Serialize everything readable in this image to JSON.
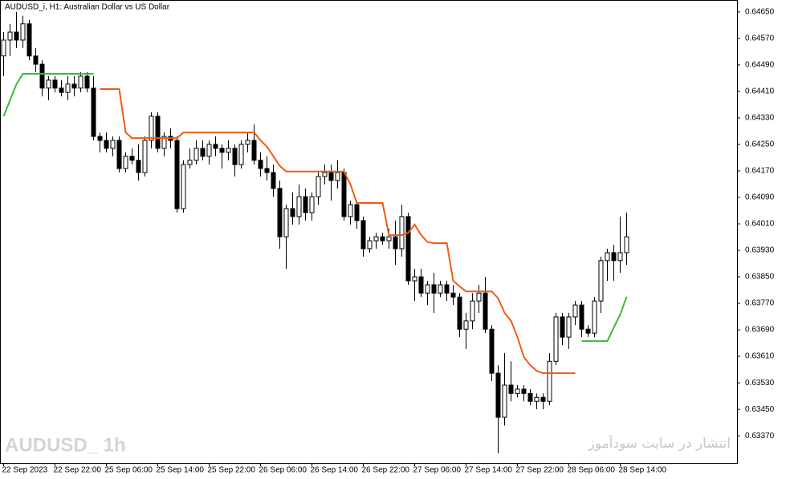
{
  "chart_data": {
    "type": "candlestick",
    "title": "AUDUSD_i, H1:  Australian Dollar vs US Dollar",
    "watermark": "AUDUSD_ 1h",
    "annotation": "انتشار در سایت سودآموز",
    "categories": [
      "22 Sep 2023",
      null,
      null,
      null,
      null,
      null,
      null,
      null,
      "22 Sep 22:00",
      null,
      null,
      null,
      null,
      null,
      null,
      null,
      "25 Sep 06:00",
      null,
      null,
      null,
      null,
      null,
      null,
      null,
      "25 Sep 14:00",
      null,
      null,
      null,
      null,
      null,
      null,
      null,
      "25 Sep 22:00",
      null,
      null,
      null,
      null,
      null,
      null,
      null,
      "26 Sep 06:00",
      null,
      null,
      null,
      null,
      null,
      null,
      null,
      "26 Sep 14:00",
      null,
      null,
      null,
      null,
      null,
      null,
      null,
      "26 Sep 22:00",
      null,
      null,
      null,
      null,
      null,
      null,
      null,
      "27 Sep 06:00",
      null,
      null,
      null,
      null,
      null,
      null,
      null,
      "27 Sep 14:00",
      null,
      null,
      null,
      null,
      null,
      null,
      null,
      "27 Sep 22:00",
      null,
      null,
      null,
      null,
      null,
      null,
      null,
      "28 Sep 06:00",
      null,
      null,
      null,
      null,
      null,
      null,
      null,
      "28 Sep 14:00",
      null
    ],
    "open": [
      0.64517,
      0.64565,
      0.64589,
      0.64565,
      0.64614,
      0.64517,
      0.64492,
      0.6442,
      0.64444,
      0.6442,
      0.64407,
      0.64432,
      0.6442,
      0.64456,
      0.6442,
      0.64274,
      0.64262,
      0.64238,
      0.64262,
      0.64177,
      0.64214,
      0.64202,
      0.64165,
      0.64262,
      0.64335,
      0.64238,
      0.64274,
      0.64262,
      0.64056,
      0.64189,
      0.64202,
      0.64238,
      0.64214,
      0.6425,
      0.64238,
      0.64226,
      0.64238,
      0.64189,
      0.6425,
      0.64262,
      0.64202,
      0.64177,
      0.64165,
      0.64117,
      0.63971,
      0.64056,
      0.64032,
      0.64092,
      0.64044,
      0.64092,
      0.64153,
      0.64165,
      0.64141,
      0.64165,
      0.64032,
      0.64068,
      0.6402,
      0.63935,
      0.63959,
      0.63971,
      0.63959,
      0.63971,
      0.63935,
      0.64032,
      0.63838,
      0.6385,
      0.63801,
      0.63826,
      0.63801,
      0.63826,
      0.63801,
      0.63789,
      0.63692,
      0.63717,
      0.63777,
      0.63801,
      0.63692,
      0.63559,
      0.63426,
      0.63523,
      0.63498,
      0.63511,
      0.63498,
      0.63474,
      0.63486,
      0.63474,
      0.63595,
      0.63729,
      0.63668,
      0.63729,
      0.63765,
      0.63692,
      0.6368,
      0.63777,
      0.63899,
      0.63923,
      0.63899,
      0.63923
    ],
    "high": [
      0.64589,
      0.64614,
      0.6465,
      0.64638,
      0.64626,
      0.64541,
      0.64504,
      0.64456,
      0.64456,
      0.64444,
      0.64456,
      0.64456,
      0.64468,
      0.64468,
      0.64456,
      0.64286,
      0.64286,
      0.64274,
      0.64274,
      0.64226,
      0.64238,
      0.6425,
      0.64274,
      0.64347,
      0.64347,
      0.64286,
      0.64298,
      0.64274,
      0.64202,
      0.64238,
      0.64262,
      0.64262,
      0.64262,
      0.64274,
      0.6425,
      0.64262,
      0.6425,
      0.64262,
      0.64286,
      0.6431,
      0.64226,
      0.64214,
      0.64189,
      0.64141,
      0.64068,
      0.64105,
      0.64129,
      0.64117,
      0.64105,
      0.64165,
      0.64189,
      0.64189,
      0.64202,
      0.64177,
      0.6408,
      0.6408,
      0.64032,
      0.63971,
      0.63983,
      0.63983,
      0.63995,
      0.6402,
      0.64068,
      0.64044,
      0.63874,
      0.63874,
      0.63838,
      0.63862,
      0.63838,
      0.63838,
      0.63826,
      0.63801,
      0.63741,
      0.63801,
      0.63826,
      0.6385,
      0.63704,
      0.63583,
      0.6362,
      0.63595,
      0.63523,
      0.63523,
      0.63511,
      0.63498,
      0.63498,
      0.6362,
      0.63741,
      0.63741,
      0.63741,
      0.63777,
      0.63777,
      0.63704,
      0.63789,
      0.63911,
      0.63935,
      0.63947,
      0.64032,
      0.64044
    ],
    "low": [
      0.64456,
      0.64517,
      0.64541,
      0.64541,
      0.64504,
      0.64468,
      0.64395,
      0.64383,
      0.64407,
      0.64395,
      0.64383,
      0.64395,
      0.64407,
      0.64407,
      0.64262,
      0.64226,
      0.64226,
      0.64214,
      0.64165,
      0.64165,
      0.64189,
      0.64141,
      0.64153,
      0.64238,
      0.64226,
      0.64214,
      0.64238,
      0.64044,
      0.64044,
      0.64177,
      0.64189,
      0.64202,
      0.64189,
      0.64214,
      0.64177,
      0.64202,
      0.64153,
      0.64177,
      0.64226,
      0.64189,
      0.64153,
      0.64141,
      0.64092,
      0.63935,
      0.63874,
      0.64008,
      0.64008,
      0.6402,
      0.6402,
      0.64068,
      0.64129,
      0.6408,
      0.64117,
      0.6402,
      0.64008,
      0.63995,
      0.63911,
      0.63923,
      0.63935,
      0.63947,
      0.63935,
      0.63886,
      0.63911,
      0.63826,
      0.63777,
      0.63789,
      0.63765,
      0.63741,
      0.63789,
      0.63777,
      0.63765,
      0.63668,
      0.63632,
      0.63692,
      0.63741,
      0.6368,
      0.63535,
      0.63317,
      0.63401,
      0.63474,
      0.63486,
      0.63474,
      0.63462,
      0.6345,
      0.6345,
      0.63462,
      0.63583,
      0.63644,
      0.63632,
      0.63704,
      0.63668,
      0.63668,
      0.63668,
      0.63741,
      0.63838,
      0.63838,
      0.63862,
      0.63886
    ],
    "close": [
      0.64565,
      0.64589,
      0.64565,
      0.64614,
      0.64517,
      0.64492,
      0.6442,
      0.64444,
      0.6442,
      0.64407,
      0.64432,
      0.6442,
      0.64456,
      0.6442,
      0.64274,
      0.64262,
      0.64238,
      0.64262,
      0.64177,
      0.64214,
      0.64202,
      0.64165,
      0.64262,
      0.64335,
      0.64238,
      0.64274,
      0.64262,
      0.64056,
      0.64189,
      0.64202,
      0.64238,
      0.64214,
      0.6425,
      0.64238,
      0.64226,
      0.64238,
      0.64189,
      0.6425,
      0.64262,
      0.64202,
      0.64177,
      0.64165,
      0.64117,
      0.63971,
      0.64056,
      0.64032,
      0.64092,
      0.64044,
      0.64092,
      0.64153,
      0.64165,
      0.64141,
      0.64165,
      0.64032,
      0.64068,
      0.6402,
      0.63935,
      0.63959,
      0.63971,
      0.63959,
      0.63971,
      0.63935,
      0.64032,
      0.63838,
      0.6385,
      0.63801,
      0.63826,
      0.63801,
      0.63826,
      0.63801,
      0.63789,
      0.63692,
      0.63717,
      0.63777,
      0.63801,
      0.63692,
      0.63559,
      0.63426,
      0.63523,
      0.63498,
      0.63511,
      0.63498,
      0.63474,
      0.63486,
      0.63474,
      0.63595,
      0.63729,
      0.63668,
      0.63729,
      0.63765,
      0.63692,
      0.6368,
      0.63777,
      0.63899,
      0.63923,
      0.63899,
      0.63923,
      0.63971
    ],
    "up_color": "#ffffff",
    "down_color": "#000000",
    "series": [
      {
        "color": "#3cb83c",
        "values": [
          0.64335,
          0.64383,
          0.64432,
          0.64463,
          0.64463,
          0.64463,
          0.64463,
          0.64463,
          0.64463,
          0.64463,
          0.64463,
          0.64463,
          0.64463,
          0.64463,
          0.64463,
          null,
          null,
          null,
          null,
          null,
          null,
          null,
          null,
          null,
          null,
          null,
          null,
          null,
          null,
          null,
          null,
          null,
          null,
          null,
          null,
          null,
          null,
          null,
          null,
          null,
          null,
          null,
          null,
          null,
          null,
          null,
          null,
          null,
          null,
          null,
          null,
          null,
          null,
          null,
          null,
          null,
          null,
          null,
          null,
          null,
          null,
          null,
          null,
          null,
          null,
          null,
          null,
          null,
          null,
          null,
          null,
          null,
          null,
          null,
          null,
          null,
          null,
          null,
          null,
          null,
          null,
          null,
          null,
          null,
          null,
          null,
          null,
          null,
          null,
          null,
          0.63656,
          0.63656,
          0.63656,
          0.63656,
          0.63656,
          0.63697,
          0.63736,
          0.6379
        ]
      },
      {
        "color": "#f05a14",
        "values": [
          null,
          null,
          null,
          null,
          null,
          null,
          null,
          null,
          null,
          null,
          null,
          null,
          null,
          null,
          null,
          0.64417,
          0.64417,
          0.64417,
          0.64417,
          0.64286,
          0.64269,
          0.64269,
          0.64269,
          0.64269,
          0.64269,
          0.64269,
          0.64269,
          0.64269,
          0.64286,
          0.64286,
          0.64286,
          0.64286,
          0.64286,
          0.64286,
          0.64286,
          0.64286,
          0.64286,
          0.64286,
          0.64286,
          0.64286,
          0.64262,
          0.64243,
          0.64214,
          0.64185,
          0.64168,
          0.64168,
          0.64168,
          0.64168,
          0.64168,
          0.64168,
          0.64168,
          0.64168,
          0.64168,
          0.64168,
          0.64129,
          0.64073,
          0.64073,
          0.64073,
          0.64073,
          0.64073,
          0.63976,
          0.63976,
          0.63976,
          0.63983,
          0.64008,
          0.63976,
          0.63955,
          0.63952,
          0.63952,
          0.63952,
          0.63838,
          0.63821,
          0.63806,
          0.63806,
          0.63806,
          0.63806,
          0.63806,
          0.63785,
          0.63741,
          0.63717,
          0.63668,
          0.63608,
          0.63583,
          0.63566,
          0.63559,
          0.63559,
          0.63559,
          0.63559,
          0.63559,
          0.63559,
          null,
          null,
          null,
          null,
          null,
          null,
          null,
          null
        ]
      }
    ],
    "ylim": [
      0.63288,
      0.64686
    ],
    "yticks": [
      {
        "value": 0.6465,
        "label": "0.64650"
      },
      {
        "value": 0.6457,
        "label": "0.64570"
      },
      {
        "value": 0.6449,
        "label": "0.64490"
      },
      {
        "value": 0.6441,
        "label": "0.64410"
      },
      {
        "value": 0.6433,
        "label": "0.64330"
      },
      {
        "value": 0.6425,
        "label": "0.64250"
      },
      {
        "value": 0.6417,
        "label": "0.64170"
      },
      {
        "value": 0.6409,
        "label": "0.64090"
      },
      {
        "value": 0.6401,
        "label": "0.64010"
      },
      {
        "value": 0.6393,
        "label": "0.63930"
      },
      {
        "value": 0.6385,
        "label": "0.63850"
      },
      {
        "value": 0.6377,
        "label": "0.63770"
      },
      {
        "value": 0.6369,
        "label": "0.63690"
      },
      {
        "value": 0.6361,
        "label": "0.63610"
      },
      {
        "value": 0.6353,
        "label": "0.63530"
      },
      {
        "value": 0.6345,
        "label": "0.63450"
      },
      {
        "value": 0.6337,
        "label": "0.63370"
      }
    ],
    "grid": false
  }
}
